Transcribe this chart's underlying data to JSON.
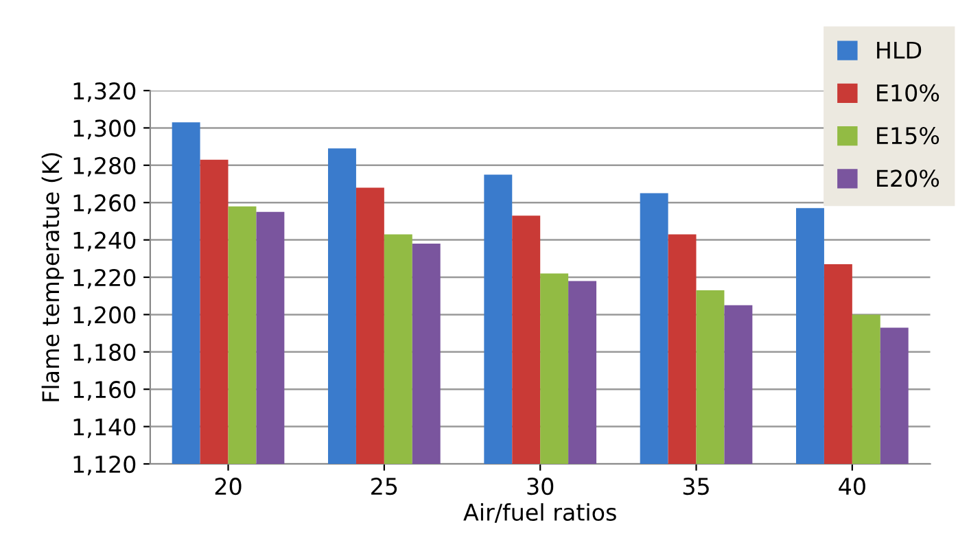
{
  "chart_data": {
    "type": "bar",
    "xlabel": "Air/fuel ratios",
    "ylabel": "Flame temperatue (K)",
    "categories": [
      "20",
      "25",
      "30",
      "35",
      "40"
    ],
    "series": [
      {
        "name": "HLD",
        "color": "#3a7bcc",
        "values": [
          1303,
          1289,
          1275,
          1265,
          1257
        ]
      },
      {
        "name": "E10%",
        "color": "#c93a36",
        "values": [
          1283,
          1268,
          1253,
          1243,
          1227
        ]
      },
      {
        "name": "E15%",
        "color": "#92bb44",
        "values": [
          1258,
          1243,
          1222,
          1213,
          1200
        ]
      },
      {
        "name": "E20%",
        "color": "#7a559e",
        "values": [
          1255,
          1238,
          1218,
          1205,
          1193
        ]
      }
    ],
    "ylim": [
      1120,
      1320
    ],
    "yticks": [
      {
        "value": 1120,
        "label": "1,120"
      },
      {
        "value": 1140,
        "label": "1,140"
      },
      {
        "value": 1160,
        "label": "1,160"
      },
      {
        "value": 1180,
        "label": "1,180"
      },
      {
        "value": 1200,
        "label": "1,200"
      },
      {
        "value": 1220,
        "label": "1,220"
      },
      {
        "value": 1240,
        "label": "1,240"
      },
      {
        "value": 1260,
        "label": "1,260"
      },
      {
        "value": 1280,
        "label": "1,280"
      },
      {
        "value": 1300,
        "label": "1,300"
      },
      {
        "value": 1320,
        "label": "1,320"
      }
    ],
    "grid": "y",
    "legend": "top right"
  }
}
